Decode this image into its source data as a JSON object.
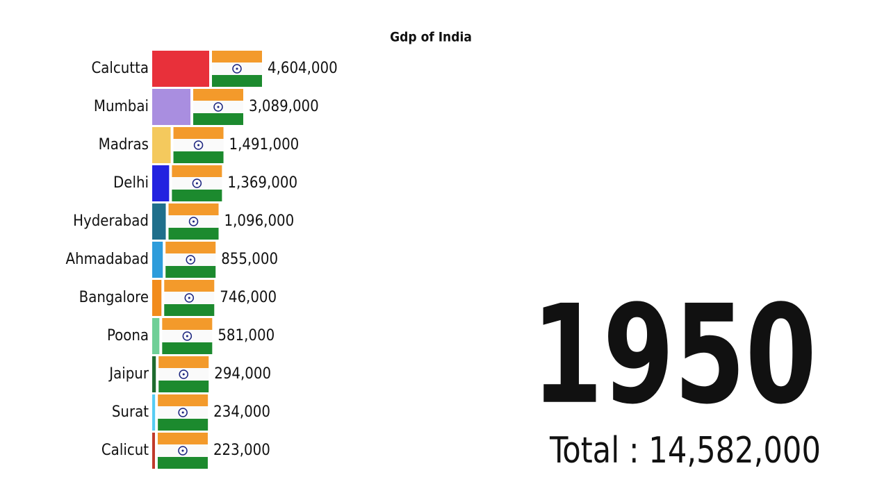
{
  "chart_data": {
    "type": "bar",
    "orientation": "horizontal",
    "title": "Gdp of India",
    "categories": [
      "Calcutta",
      "Mumbai",
      "Madras",
      "Delhi",
      "Hyderabad",
      "Ahmadabad",
      "Bangalore",
      "Poona",
      "Jaipur",
      "Surat",
      "Calicut"
    ],
    "values": [
      4604000,
      3089000,
      1491000,
      1369000,
      1096000,
      855000,
      746000,
      581000,
      294000,
      234000,
      223000
    ],
    "value_labels": [
      "4,604,000",
      "3,089,000",
      "1,491,000",
      "1,369,000",
      "1,096,000",
      "855,000",
      "746,000",
      "581,000",
      "294,000",
      "234,000",
      "223,000"
    ],
    "colors": [
      "#e8303a",
      "#a98ee0",
      "#f4c95d",
      "#2222e0",
      "#1f6f8b",
      "#2d9cdb",
      "#f28c1c",
      "#6fcf97",
      "#1e6b2e",
      "#56ccf2",
      "#c0392b"
    ],
    "year": "1950",
    "total": "Total : 14,582,000"
  }
}
